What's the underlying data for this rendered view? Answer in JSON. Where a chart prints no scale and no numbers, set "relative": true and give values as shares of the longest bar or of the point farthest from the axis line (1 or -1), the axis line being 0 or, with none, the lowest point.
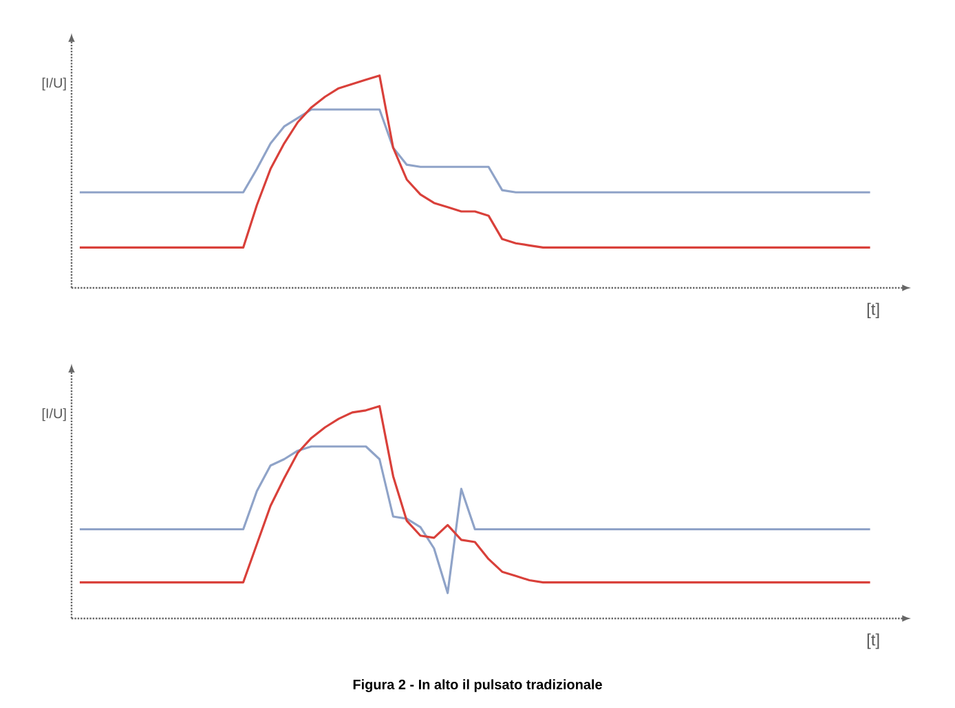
{
  "chart_data": [
    {
      "type": "line",
      "relative": true,
      "ylabel": "[I/U]",
      "xlabel": "[t]",
      "categories": [
        null,
        null,
        null,
        null,
        null,
        null,
        null,
        null,
        null,
        null,
        null,
        null,
        null,
        null,
        null,
        null,
        null,
        null,
        null,
        null,
        null,
        null,
        null,
        null,
        null,
        null,
        null,
        null,
        null,
        null,
        null,
        null,
        null,
        null,
        null,
        null,
        null,
        null,
        null,
        null,
        null,
        null,
        null,
        null,
        null,
        null,
        null,
        null,
        null,
        null,
        null,
        null,
        null,
        null,
        null,
        null,
        null,
        null,
        null
      ],
      "series": [
        {
          "color": "#8fa3c8",
          "values": [
            0.45,
            0.45,
            0.45,
            0.45,
            0.45,
            0.45,
            0.45,
            0.45,
            0.45,
            0.45,
            0.45,
            0.45,
            0.45,
            0.56,
            0.68,
            0.76,
            0.8,
            0.84,
            0.84,
            0.84,
            0.84,
            0.84,
            0.84,
            0.66,
            0.58,
            0.57,
            0.57,
            0.57,
            0.57,
            0.57,
            0.57,
            0.46,
            0.45,
            0.45,
            0.45,
            0.45,
            0.45,
            0.45,
            0.45,
            0.45,
            0.45,
            0.45,
            0.45,
            0.45,
            0.45,
            0.45,
            0.45,
            0.45,
            0.45,
            0.45,
            0.45,
            0.45,
            0.45,
            0.45,
            0.45,
            0.45,
            0.45,
            0.45,
            0.45
          ]
        },
        {
          "color": "#d9403a",
          "values": [
            0.19,
            0.19,
            0.19,
            0.19,
            0.19,
            0.19,
            0.19,
            0.19,
            0.19,
            0.19,
            0.19,
            0.19,
            0.19,
            0.39,
            0.56,
            0.68,
            0.78,
            0.85,
            0.9,
            0.94,
            0.96,
            0.98,
            1,
            0.66,
            0.51,
            0.44,
            0.4,
            0.38,
            0.36,
            0.36,
            0.34,
            0.23,
            0.21,
            0.2,
            0.19,
            0.19,
            0.19,
            0.19,
            0.19,
            0.19,
            0.19,
            0.19,
            0.19,
            0.19,
            0.19,
            0.19,
            0.19,
            0.19,
            0.19,
            0.19,
            0.19,
            0.19,
            0.19,
            0.19,
            0.19,
            0.19,
            0.19,
            0.19,
            0.19
          ]
        }
      ]
    },
    {
      "type": "line",
      "relative": true,
      "ylabel": "[I/U]",
      "xlabel": "[t]",
      "categories": [
        null,
        null,
        null,
        null,
        null,
        null,
        null,
        null,
        null,
        null,
        null,
        null,
        null,
        null,
        null,
        null,
        null,
        null,
        null,
        null,
        null,
        null,
        null,
        null,
        null,
        null,
        null,
        null,
        null,
        null,
        null,
        null,
        null,
        null,
        null,
        null,
        null,
        null,
        null,
        null,
        null,
        null,
        null,
        null,
        null,
        null,
        null,
        null,
        null,
        null,
        null,
        null,
        null,
        null,
        null,
        null,
        null,
        null,
        null
      ],
      "series": [
        {
          "color": "#8fa3c8",
          "values": [
            0.42,
            0.42,
            0.42,
            0.42,
            0.42,
            0.42,
            0.42,
            0.42,
            0.42,
            0.42,
            0.42,
            0.42,
            0.42,
            0.6,
            0.72,
            0.75,
            0.79,
            0.81,
            0.81,
            0.81,
            0.81,
            0.81,
            0.75,
            0.48,
            0.47,
            0.43,
            0.33,
            0.12,
            0.61,
            0.42,
            0.42,
            0.42,
            0.42,
            0.42,
            0.42,
            0.42,
            0.42,
            0.42,
            0.42,
            0.42,
            0.42,
            0.42,
            0.42,
            0.42,
            0.42,
            0.42,
            0.42,
            0.42,
            0.42,
            0.42,
            0.42,
            0.42,
            0.42,
            0.42,
            0.42,
            0.42,
            0.42,
            0.42,
            0.42
          ]
        },
        {
          "color": "#d9403a",
          "values": [
            0.17,
            0.17,
            0.17,
            0.17,
            0.17,
            0.17,
            0.17,
            0.17,
            0.17,
            0.17,
            0.17,
            0.17,
            0.17,
            0.35,
            0.53,
            0.66,
            0.78,
            0.85,
            0.9,
            0.94,
            0.97,
            0.98,
            1,
            0.67,
            0.46,
            0.39,
            0.38,
            0.44,
            0.37,
            0.36,
            0.28,
            0.22,
            0.2,
            0.18,
            0.17,
            0.17,
            0.17,
            0.17,
            0.17,
            0.17,
            0.17,
            0.17,
            0.17,
            0.17,
            0.17,
            0.17,
            0.17,
            0.17,
            0.17,
            0.17,
            0.17,
            0.17,
            0.17,
            0.17,
            0.17,
            0.17,
            0.17,
            0.17,
            0.17
          ]
        }
      ],
      "annotations": [
        "Figura 2 - In alto il pulsato tradizionale"
      ]
    }
  ]
}
